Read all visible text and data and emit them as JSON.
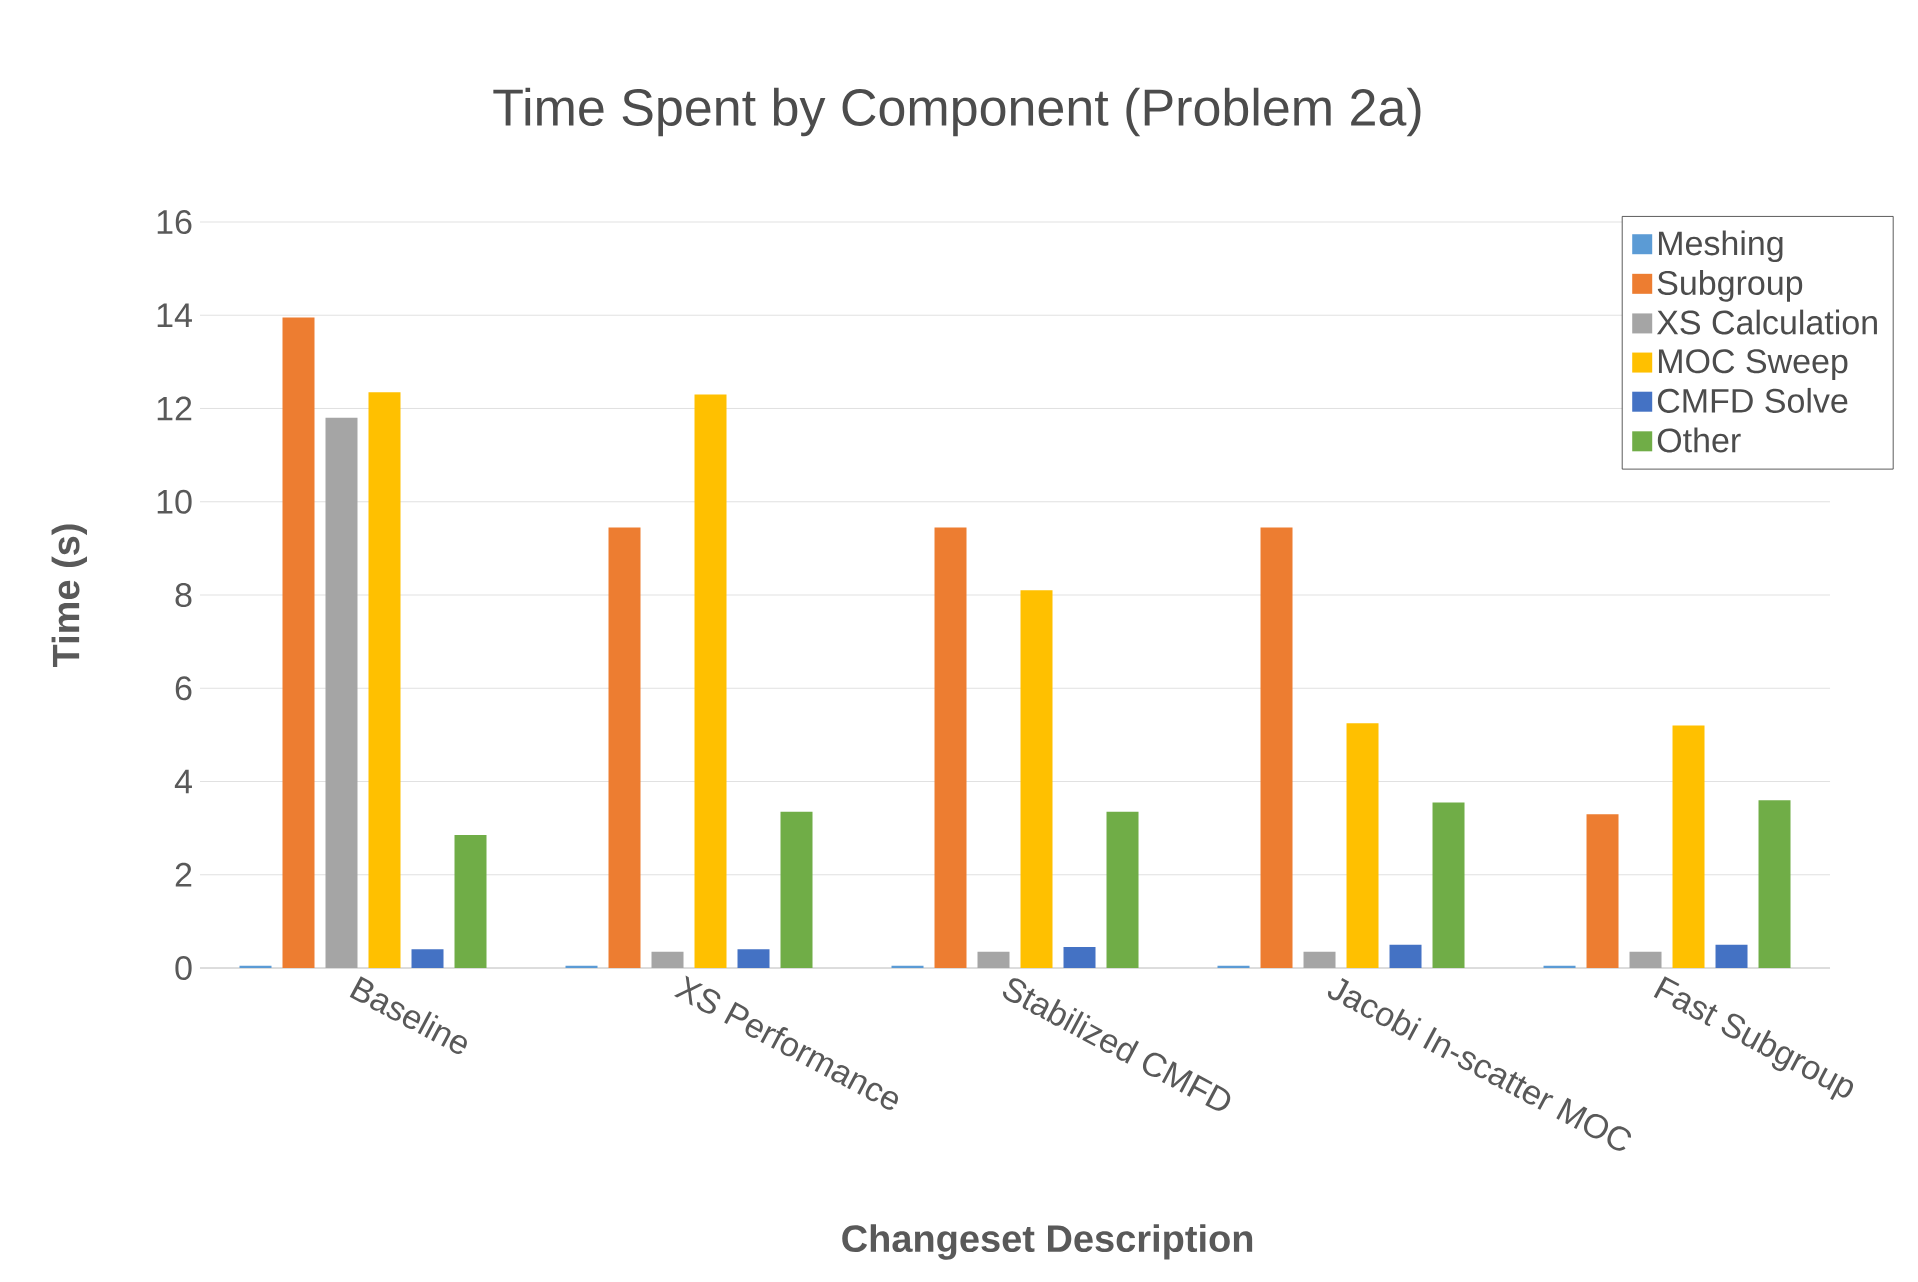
{
  "chart_data": {
    "type": "bar",
    "title": "Time Spent by Component (Problem 2a)",
    "xlabel": "Changeset Description",
    "ylabel": "Time (s)",
    "categories": [
      "Baseline",
      "XS Performance",
      "Stabilized CMFD",
      "Jacobi In-scatter MOC",
      "Fast Subgroup"
    ],
    "series": [
      {
        "name": "Meshing",
        "color": "#5b9bd5",
        "values": [
          0.05,
          0.05,
          0.05,
          0.05,
          0.05
        ]
      },
      {
        "name": "Subgroup",
        "color": "#ed7d31",
        "values": [
          13.95,
          9.45,
          9.45,
          9.45,
          3.3
        ]
      },
      {
        "name": "XS Calculation",
        "color": "#a5a5a5",
        "values": [
          11.8,
          0.35,
          0.35,
          0.35,
          0.35
        ]
      },
      {
        "name": "MOC Sweep",
        "color": "#ffc000",
        "values": [
          12.35,
          12.3,
          8.1,
          5.25,
          5.2
        ]
      },
      {
        "name": "CMFD Solve",
        "color": "#4472c4",
        "values": [
          0.4,
          0.4,
          0.45,
          0.5,
          0.5
        ]
      },
      {
        "name": "Other",
        "color": "#70ad47",
        "values": [
          2.85,
          3.35,
          3.35,
          3.55,
          3.6
        ]
      }
    ],
    "ylim": [
      0,
      16
    ],
    "yticks": [
      0,
      2,
      4,
      6,
      8,
      10,
      12,
      14,
      16
    ],
    "grid": "y",
    "legend": "top right"
  }
}
